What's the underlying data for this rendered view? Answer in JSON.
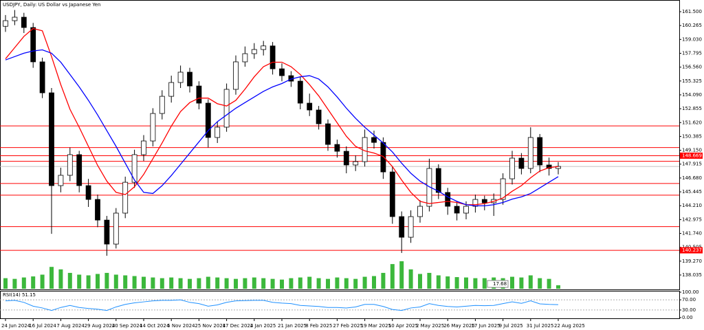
{
  "chart_data": [
    {
      "type": "candlestick",
      "title": "USDJPY, Daily: US Dollar vs Japanese Yen",
      "categories": [
        "24 Jun 2024",
        null,
        null,
        "16 Jul 2024",
        null,
        null,
        "7 Aug 2024",
        null,
        null,
        "29 Aug 2024",
        null,
        null,
        "20 Sep 2024",
        null,
        null,
        "14 Oct 2024",
        null,
        null,
        "5 Nov 2024",
        null,
        null,
        "25 Nov 2024",
        null,
        null,
        "17 Dec 2024",
        null,
        null,
        "2 Jan 2025",
        null,
        null,
        "21 Jan 2025",
        null,
        null,
        "8 Feb 2025",
        null,
        null,
        "27 Feb 2025",
        null,
        null,
        "19 Mar 2025",
        null,
        null,
        "10 Apr 2025",
        null,
        null,
        "2 May 2025",
        null,
        null,
        "26 May 2025",
        null,
        null,
        "17 Jun 2025",
        null,
        null,
        "9 Jul 2025",
        null,
        null,
        "31 Jul 2025",
        null,
        null,
        "22 Aug 2025"
      ],
      "open": [
        160.2,
        160.7,
        161.01,
        160.09,
        157.03,
        154.27,
        146.0,
        146.92,
        148.76,
        146.0,
        144.77,
        142.93,
        140.79,
        143.55,
        146.3,
        148.76,
        149.98,
        152.43,
        153.96,
        155.19,
        156.11,
        154.88,
        153.35,
        150.29,
        151.21,
        154.58,
        157.03,
        157.76,
        158.13,
        158.45,
        156.41,
        155.8,
        155.31,
        153.35,
        152.74,
        151.51,
        149.67,
        149.06,
        147.84,
        148.14,
        150.29,
        149.85,
        147.22,
        143.24,
        141.4,
        143.24,
        144.16,
        147.53,
        145.39,
        144.16,
        143.55,
        144.16,
        144.77,
        144.47,
        144.77,
        146.61,
        148.45,
        147.53,
        150.29,
        147.84,
        147.53
      ],
      "high": [
        161.2,
        161.65,
        161.4,
        160.5,
        157.4,
        154.7,
        147.6,
        149.4,
        149.1,
        146.6,
        145.2,
        143.3,
        144.0,
        146.8,
        149.2,
        150.5,
        152.9,
        154.5,
        155.8,
        156.7,
        156.5,
        155.3,
        153.7,
        151.7,
        155.1,
        157.6,
        158.4,
        158.7,
        158.9,
        158.8,
        156.9,
        156.2,
        155.7,
        154.2,
        153.1,
        151.9,
        150.1,
        149.5,
        148.7,
        151.0,
        150.9,
        150.3,
        147.7,
        143.7,
        143.8,
        144.7,
        148.4,
        147.9,
        145.8,
        144.6,
        144.6,
        145.2,
        145.1,
        145.3,
        147.1,
        149.1,
        148.9,
        151.2,
        150.6,
        148.5,
        148.1
      ],
      "low": [
        159.7,
        160.3,
        159.6,
        156.5,
        153.8,
        141.7,
        145.4,
        146.4,
        145.4,
        144.1,
        142.3,
        139.75,
        140.4,
        143.1,
        145.8,
        148.2,
        149.5,
        151.9,
        153.4,
        154.7,
        154.3,
        152.8,
        149.4,
        149.8,
        150.8,
        154.1,
        156.6,
        157.3,
        157.6,
        155.9,
        155.3,
        154.8,
        152.8,
        152.2,
        151.0,
        149.1,
        148.5,
        147.1,
        147.3,
        147.7,
        149.3,
        146.6,
        142.6,
        140.0,
        140.9,
        142.7,
        143.7,
        144.8,
        143.4,
        142.9,
        143.0,
        143.6,
        143.8,
        143.3,
        144.3,
        146.1,
        147.0,
        147.1,
        147.2,
        146.9,
        147.0
      ],
      "close": [
        160.7,
        161.01,
        160.09,
        157.03,
        154.27,
        146.0,
        146.92,
        148.76,
        146.0,
        144.77,
        142.93,
        140.79,
        143.55,
        146.3,
        148.76,
        149.98,
        152.43,
        153.96,
        155.19,
        156.11,
        154.88,
        153.35,
        150.29,
        151.21,
        154.58,
        157.03,
        157.76,
        158.13,
        158.45,
        156.41,
        155.8,
        155.31,
        153.35,
        152.74,
        151.51,
        149.67,
        149.06,
        147.84,
        148.14,
        150.29,
        149.85,
        147.22,
        143.24,
        141.4,
        143.24,
        144.16,
        147.53,
        145.39,
        144.16,
        143.55,
        144.16,
        144.77,
        144.47,
        144.77,
        146.61,
        148.45,
        147.53,
        150.29,
        147.84,
        147.53,
        147.71
      ],
      "up_color": "#ffffff",
      "down_color": "#000000",
      "ma_fast": {
        "color": "#ff0000",
        "values": [
          157.3,
          158.3,
          159.3,
          160.0,
          159.8,
          157.5,
          155.0,
          152.8,
          151.2,
          149.5,
          147.8,
          146.4,
          145.4,
          145.2,
          145.9,
          147.0,
          148.4,
          149.8,
          151.3,
          152.6,
          153.4,
          153.8,
          153.8,
          153.3,
          153.1,
          153.6,
          154.6,
          155.7,
          156.6,
          157.0,
          157.0,
          156.6,
          155.9,
          155.0,
          154.0,
          152.8,
          151.6,
          150.4,
          149.5,
          149.1,
          148.9,
          148.6,
          147.7,
          146.5,
          145.4,
          144.6,
          144.4,
          144.5,
          144.6,
          144.5,
          144.3,
          144.3,
          144.4,
          144.6,
          144.9,
          145.5,
          146.0,
          146.7,
          147.3,
          147.6,
          147.7
        ]
      },
      "ma_slow": {
        "color": "#0000ff",
        "values": [
          157.2,
          157.5,
          157.8,
          158.0,
          158.1,
          157.8,
          157.0,
          155.9,
          154.8,
          153.6,
          152.3,
          150.9,
          149.5,
          148.0,
          146.5,
          145.4,
          145.3,
          146.0,
          146.9,
          147.9,
          148.9,
          149.9,
          150.9,
          151.7,
          152.3,
          152.9,
          153.4,
          153.9,
          154.4,
          154.8,
          155.1,
          155.5,
          155.7,
          155.8,
          155.5,
          154.8,
          153.9,
          152.9,
          152.0,
          151.2,
          150.5,
          149.8,
          149.0,
          148.0,
          147.1,
          146.4,
          145.9,
          145.5,
          145.0,
          144.6,
          144.3,
          144.2,
          144.2,
          144.3,
          144.5,
          144.8,
          145.0,
          145.3,
          145.8,
          146.3,
          146.8
        ]
      },
      "volume": {
        "color": "#3cb83c",
        "values": [
          30,
          28,
          32,
          35,
          40,
          62,
          55,
          45,
          40,
          38,
          42,
          45,
          40,
          38,
          36,
          34,
          32,
          30,
          32,
          30,
          28,
          30,
          34,
          32,
          30,
          28,
          30,
          32,
          30,
          28,
          26,
          30,
          32,
          34,
          30,
          28,
          32,
          30,
          28,
          34,
          36,
          45,
          70,
          78,
          55,
          42,
          45,
          38,
          35,
          33,
          32,
          30,
          30,
          32,
          30,
          34,
          32,
          38,
          30,
          28,
          10
        ]
      },
      "volume_label": 17.68,
      "levels": [
        151.32,
        149.39,
        148.17,
        146.19,
        145.15,
        142.35
      ],
      "marked_levels": [
        148.669,
        140.237
      ],
      "level_color": "#ff0000",
      "ylim": [
        136.81,
        162.42
      ],
      "yticks": [
        {
          "value": 161.5,
          "label": "161.500"
        },
        {
          "value": 160.265,
          "label": "160.265"
        },
        {
          "value": 159.03,
          "label": "159.030"
        },
        {
          "value": 157.795,
          "label": "157.795"
        },
        {
          "value": 156.56,
          "label": "156.560"
        },
        {
          "value": 155.325,
          "label": "155.325"
        },
        {
          "value": 154.09,
          "label": "154.090"
        },
        {
          "value": 152.855,
          "label": "152.855"
        },
        {
          "value": 151.62,
          "label": "151.620"
        },
        {
          "value": 150.385,
          "label": "150.385"
        },
        {
          "value": 149.15,
          "label": "149.150"
        },
        {
          "value": 147.915,
          "label": "147.915"
        },
        {
          "value": 146.68,
          "label": "146.680"
        },
        {
          "value": 145.445,
          "label": "145.445"
        },
        {
          "value": 144.21,
          "label": "144.210"
        },
        {
          "value": 142.975,
          "label": "142.975"
        },
        {
          "value": 141.74,
          "label": "141.740"
        },
        {
          "value": 140.505,
          "label": "140.505"
        },
        {
          "value": 139.27,
          "label": "139.270"
        },
        {
          "value": 138.035,
          "label": "138.035"
        }
      ]
    },
    {
      "type": "line",
      "title": "RSI(14) 51.15",
      "color": "#1e90ff",
      "values": [
        66,
        68,
        60,
        45,
        38,
        28,
        40,
        48,
        40,
        36,
        33,
        28,
        42,
        52,
        58,
        62,
        66,
        68,
        68,
        70,
        60,
        55,
        45,
        50,
        60,
        66,
        67,
        68,
        68,
        60,
        57,
        55,
        48,
        46,
        44,
        40,
        40,
        38,
        42,
        52,
        52,
        44,
        32,
        28,
        38,
        42,
        55,
        48,
        44,
        42,
        45,
        48,
        47,
        48,
        55,
        62,
        56,
        66,
        54,
        52,
        51.15
      ],
      "ylim": [
        0,
        100
      ],
      "yticks": [
        {
          "value": 100,
          "label": "100.00"
        },
        {
          "value": 70,
          "label": "70.00"
        },
        {
          "value": 30,
          "label": "30.00"
        },
        {
          "value": 0,
          "label": "0.00"
        }
      ]
    }
  ]
}
